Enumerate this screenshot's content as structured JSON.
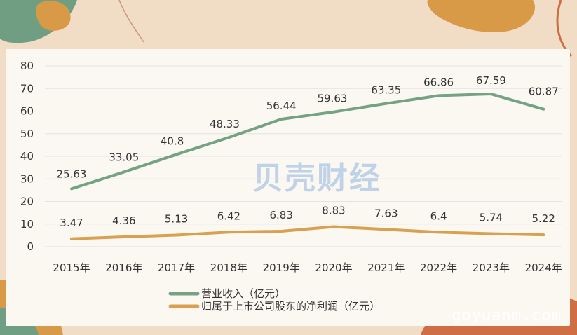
{
  "watermark": {
    "text": "贝壳财经"
  },
  "footer": {
    "url": "goyuanm.com"
  },
  "colors": {
    "revenue": "#73a383",
    "profit": "#d9a04f",
    "grid": "#e3e3e3",
    "background": "#f1dcc5",
    "panel": "#fbf7f1"
  },
  "chart_data": {
    "type": "line",
    "categories": [
      "2015年",
      "2016年",
      "2017年",
      "2018年",
      "2019年",
      "2020年",
      "2021年",
      "2022年",
      "2023年",
      "2024年"
    ],
    "ylim": [
      0,
      80
    ],
    "yticks": [
      0,
      10,
      20,
      30,
      40,
      50,
      60,
      70,
      80
    ],
    "grid": true,
    "legend": "bottom-left",
    "series": [
      {
        "name": "营业收入（亿元）",
        "color": "#73a383",
        "values": [
          25.63,
          33.05,
          40.8,
          48.33,
          56.44,
          59.63,
          63.35,
          66.86,
          67.59,
          60.87
        ],
        "labels": [
          "25.63",
          "33.05",
          "40.8",
          "48.33",
          "56.44",
          "59.63",
          "63.35",
          "66.86",
          "67.59",
          "60.87"
        ]
      },
      {
        "name": "归属于上市公司股东的净利润（亿元）",
        "color": "#d9a04f",
        "values": [
          3.47,
          4.36,
          5.13,
          6.42,
          6.83,
          8.83,
          7.63,
          6.4,
          5.74,
          5.22
        ],
        "labels": [
          "3.47",
          "4.36",
          "5.13",
          "6.42",
          "6.83",
          "8.83",
          "7.63",
          "6.4",
          "5.74",
          "5.22"
        ]
      }
    ]
  }
}
